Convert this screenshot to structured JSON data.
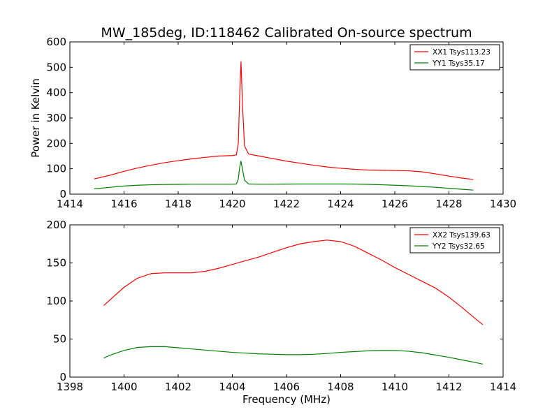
{
  "chart_data": [
    {
      "type": "line",
      "title": "MW_185deg, ID:118462 Calibrated On-source spectrum",
      "xlabel": "",
      "ylabel": "Power in Kelvin",
      "xlim": [
        1414,
        1430
      ],
      "ylim": [
        0,
        600
      ],
      "xticks": [
        "1414",
        "1416",
        "1418",
        "1420",
        "1422",
        "1424",
        "1426",
        "1428",
        "1430"
      ],
      "yticks": [
        "0",
        "100",
        "200",
        "300",
        "400",
        "500",
        "600"
      ],
      "legend": "top-right",
      "grid": false,
      "series": [
        {
          "name": "XX1 Tsys113.23",
          "color": "#ff0000",
          "x": [
            1414.9,
            1415.5,
            1416.0,
            1416.5,
            1417.0,
            1417.5,
            1418.0,
            1418.5,
            1419.0,
            1419.5,
            1420.0,
            1420.15,
            1420.22,
            1420.27,
            1420.32,
            1420.38,
            1420.45,
            1420.6,
            1421.0,
            1421.5,
            1422.0,
            1422.5,
            1423.0,
            1423.5,
            1424.0,
            1424.5,
            1425.0,
            1425.5,
            1426.0,
            1426.5,
            1427.0,
            1427.5,
            1428.0,
            1428.5,
            1428.9
          ],
          "values": [
            60,
            75,
            90,
            103,
            114,
            124,
            132,
            139,
            145,
            150,
            152,
            155,
            200,
            380,
            522,
            340,
            190,
            158,
            150,
            140,
            130,
            122,
            114,
            107,
            102,
            98,
            95,
            94,
            93,
            92,
            88,
            80,
            71,
            63,
            58
          ]
        },
        {
          "name": "YY1 Tsys35.17",
          "color": "#008000",
          "x": [
            1414.9,
            1415.5,
            1416.0,
            1416.5,
            1417.0,
            1417.5,
            1418.0,
            1418.5,
            1419.0,
            1419.5,
            1420.0,
            1420.15,
            1420.22,
            1420.27,
            1420.32,
            1420.38,
            1420.45,
            1420.6,
            1421.0,
            1421.5,
            1422.0,
            1422.5,
            1423.0,
            1423.5,
            1424.0,
            1424.5,
            1425.0,
            1425.5,
            1426.0,
            1426.5,
            1427.0,
            1427.5,
            1428.0,
            1428.5,
            1428.9
          ],
          "values": [
            21,
            27,
            32,
            35,
            37,
            38,
            38.5,
            39,
            39,
            39,
            39,
            40,
            60,
            105,
            130,
            95,
            55,
            40,
            39,
            39,
            39.5,
            40,
            40,
            40,
            40,
            39.5,
            38.5,
            37,
            35,
            33,
            30,
            27,
            23,
            19,
            16
          ]
        }
      ]
    },
    {
      "type": "line",
      "title": "",
      "xlabel": "Frequency (MHz)",
      "ylabel": "",
      "xlim": [
        1398,
        1414
      ],
      "ylim": [
        0,
        200
      ],
      "xticks": [
        "1398",
        "1400",
        "1402",
        "1404",
        "1406",
        "1408",
        "1410",
        "1412",
        "1414"
      ],
      "yticks": [
        "0",
        "50",
        "100",
        "150",
        "200"
      ],
      "legend": "top-right",
      "grid": false,
      "series": [
        {
          "name": "XX2 Tsys139.63",
          "color": "#ff0000",
          "x": [
            1399.25,
            1399.5,
            1400.0,
            1400.5,
            1401.0,
            1401.5,
            1402.0,
            1402.5,
            1403.0,
            1403.5,
            1404.0,
            1404.5,
            1405.0,
            1405.5,
            1406.0,
            1406.5,
            1407.0,
            1407.5,
            1408.0,
            1408.5,
            1409.0,
            1409.5,
            1410.0,
            1410.5,
            1411.0,
            1411.5,
            1412.0,
            1412.5,
            1413.0,
            1413.25
          ],
          "values": [
            94,
            102,
            118,
            130,
            136,
            137,
            137,
            137,
            139,
            143,
            148,
            153,
            158,
            164,
            170,
            175,
            178,
            180,
            178,
            172,
            163,
            154,
            144,
            135,
            126,
            117,
            105,
            91,
            76,
            69
          ]
        },
        {
          "name": "YY2 Tsys32.65",
          "color": "#008000",
          "x": [
            1399.25,
            1399.5,
            1400.0,
            1400.5,
            1401.0,
            1401.5,
            1402.0,
            1402.5,
            1403.0,
            1403.5,
            1404.0,
            1404.5,
            1405.0,
            1405.5,
            1406.0,
            1406.5,
            1407.0,
            1407.5,
            1408.0,
            1408.5,
            1409.0,
            1409.5,
            1410.0,
            1410.5,
            1411.0,
            1411.5,
            1412.0,
            1412.5,
            1413.0,
            1413.25
          ],
          "values": [
            25,
            29,
            35,
            39,
            40,
            40,
            38.5,
            37,
            35.5,
            34,
            32.5,
            31.5,
            30.5,
            30,
            29.5,
            29.5,
            30,
            31,
            32.5,
            33.5,
            34.5,
            35,
            35,
            34,
            32,
            29,
            26,
            22.5,
            19,
            17
          ]
        }
      ]
    }
  ]
}
